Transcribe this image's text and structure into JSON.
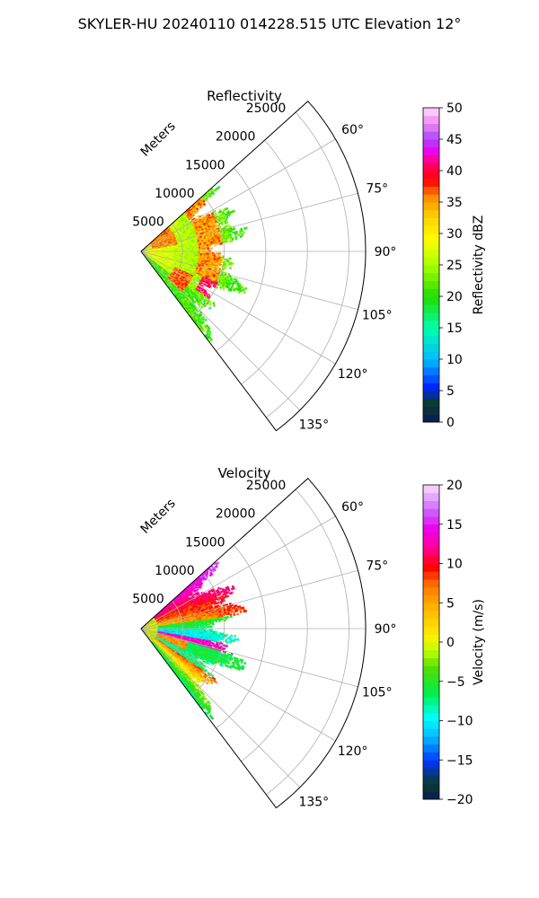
{
  "figure": {
    "title": "SKYLER-HU  20240110  014228.515 UTC Elevation 12°"
  },
  "chart_data": [
    {
      "type": "heatmap",
      "projection": "polar-sector",
      "title": "Reflectivity",
      "azimuth_range_deg": [
        48,
        143
      ],
      "range_max_m": 27000,
      "radial_tick_labels": [
        "5000",
        "10000",
        "15000",
        "20000",
        "25000"
      ],
      "radial_ticks_m": [
        5000,
        10000,
        15000,
        20000,
        25000
      ],
      "radial_axis_label": "Meters",
      "azimuth_tick_labels": [
        "60°",
        "75°",
        "90°",
        "105°",
        "120°",
        "135°"
      ],
      "azimuth_ticks_deg": [
        60,
        75,
        90,
        105,
        120,
        135
      ],
      "grid": true,
      "colorbar": {
        "label": "Reflectivity dBZ",
        "range": [
          0,
          50
        ],
        "tick_labels": [
          "0",
          "5",
          "10",
          "15",
          "20",
          "25",
          "30",
          "35",
          "40",
          "45",
          "50"
        ],
        "ticks": [
          0,
          5,
          10,
          15,
          20,
          25,
          30,
          35,
          40,
          45,
          50
        ]
      },
      "data_extent_m": 13000,
      "colors": {
        "low": "#44dd00",
        "mid": "#ffcc00",
        "high": "#ff1a1a",
        "peak": "#dd22dd"
      }
    },
    {
      "type": "heatmap",
      "projection": "polar-sector",
      "title": "Velocity",
      "azimuth_range_deg": [
        48,
        143
      ],
      "range_max_m": 27000,
      "radial_tick_labels": [
        "5000",
        "10000",
        "15000",
        "20000",
        "25000"
      ],
      "radial_ticks_m": [
        5000,
        10000,
        15000,
        20000,
        25000
      ],
      "radial_axis_label": "Meters",
      "azimuth_tick_labels": [
        "60°",
        "75°",
        "90°",
        "105°",
        "120°",
        "135°"
      ],
      "azimuth_ticks_deg": [
        60,
        75,
        90,
        105,
        120,
        135
      ],
      "grid": true,
      "colorbar": {
        "label": "Velocity (m/s)",
        "range": [
          -20,
          20
        ],
        "tick_labels": [
          "−20",
          "−15",
          "−10",
          "−5",
          "0",
          "5",
          "10",
          "15",
          "20"
        ],
        "ticks": [
          -20,
          -15,
          -10,
          -5,
          0,
          5,
          10,
          15,
          20
        ]
      },
      "data_extent_m": 13000,
      "colors": {
        "positive": "#ff2020",
        "zero": "#ffdd00",
        "negative": "#00ddff",
        "strong_negative": "#00ee44"
      }
    }
  ]
}
